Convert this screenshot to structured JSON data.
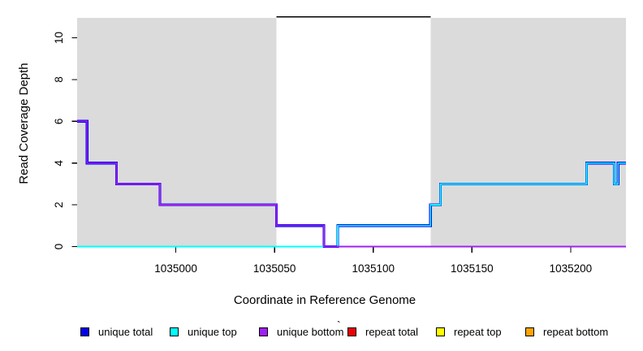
{
  "figure": {
    "xlabel": "Coordinate in Reference Genome",
    "ylabel": "Read Coverage Depth",
    "stray_mark": "`"
  },
  "legend": {
    "items": [
      {
        "label": "unique total",
        "color": "#0000EE"
      },
      {
        "label": "unique top",
        "color": "#00FFFF"
      },
      {
        "label": "unique bottom",
        "color": "#A020F0"
      },
      {
        "label": "repeat total",
        "color": "#EE0000"
      },
      {
        "label": "repeat top",
        "color": "#FFFF00"
      },
      {
        "label": "repeat bottom",
        "color": "#FFA500"
      }
    ]
  },
  "chart_data": {
    "type": "line",
    "subtype": "step",
    "title": "",
    "xlabel": "Coordinate in Reference Genome",
    "ylabel": "Read Coverage Depth",
    "xlim": [
      1034950,
      1035228
    ],
    "ylim": [
      0,
      11
    ],
    "x_ticks": [
      1035000,
      1035050,
      1035100,
      1035150,
      1035200
    ],
    "y_ticks": [
      0,
      2,
      4,
      6,
      8,
      10
    ],
    "grid": false,
    "legend_position": "bottom",
    "background_regions": [
      {
        "name": "left-shaded",
        "x0": 1034950,
        "x1": 1035051,
        "color": "#DBDBDB"
      },
      {
        "name": "middle-unshaded",
        "x0": 1035051,
        "x1": 1035129,
        "color": "#FFFFFF"
      },
      {
        "name": "right-shaded",
        "x0": 1035129,
        "x1": 1035228,
        "color": "#DBDBDB"
      }
    ],
    "top_marker_line": {
      "y": 11,
      "x0": 1035051,
      "x1": 1035129,
      "color": "#000000"
    },
    "x_end": 1035228,
    "series": [
      {
        "name": "repeat total",
        "color": "#EE0000",
        "line_width": 1,
        "steps": [
          [
            1034950,
            0
          ]
        ]
      },
      {
        "name": "repeat top",
        "color": "#FFFF00",
        "line_width": 1,
        "steps": [
          [
            1034950,
            0
          ]
        ]
      },
      {
        "name": "repeat bottom",
        "color": "#FFA500",
        "line_width": 1,
        "steps": [
          [
            1034950,
            0
          ]
        ]
      },
      {
        "name": "unique total",
        "color": "#0000EE",
        "line_width": 3.2,
        "steps": [
          [
            1034950,
            6
          ],
          [
            1034955,
            4
          ],
          [
            1034970,
            3
          ],
          [
            1034992,
            2
          ],
          [
            1035051,
            1
          ],
          [
            1035075,
            0
          ],
          [
            1035082,
            1
          ],
          [
            1035129,
            2
          ],
          [
            1035134,
            3
          ],
          [
            1035208,
            4
          ],
          [
            1035222,
            3
          ],
          [
            1035224,
            4
          ]
        ]
      },
      {
        "name": "unique top",
        "color": "#00FFFF",
        "line_width": 1.8,
        "steps": [
          [
            1034950,
            0
          ],
          [
            1035082,
            1
          ],
          [
            1035129,
            2
          ],
          [
            1035134,
            3
          ],
          [
            1035208,
            4
          ],
          [
            1035222,
            3
          ],
          [
            1035224,
            4
          ]
        ]
      },
      {
        "name": "unique bottom",
        "color": "#A020F0",
        "line_width": 1.8,
        "steps": [
          [
            1034950,
            6
          ],
          [
            1034955,
            4
          ],
          [
            1034970,
            3
          ],
          [
            1034992,
            2
          ],
          [
            1035051,
            1
          ],
          [
            1035075,
            0
          ]
        ]
      }
    ]
  }
}
